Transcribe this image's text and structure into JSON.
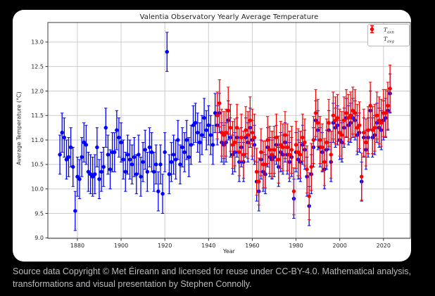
{
  "page": {
    "background": "#000000",
    "card_background": "#ffffff"
  },
  "caption": {
    "text": "Source data Copyright © Met Éireann and licensed for reuse under CC-BY-4.0. Mathematical analysis, transformations and visual presentation by Stephen Connolly.",
    "color": "#b7bbbf"
  },
  "chart_data": {
    "type": "scatter",
    "title": "Valentia Observatory Yearly Average Temperature",
    "xlabel": "Year",
    "ylabel": "Average Temperature (°C)",
    "xlim": [
      1866.5,
      2032.3
    ],
    "ylim": [
      8.99,
      13.4
    ],
    "xticks": [
      1880,
      1900,
      1920,
      1940,
      1960,
      1980,
      2000,
      2020
    ],
    "yticks": [
      9.0,
      9.5,
      10.0,
      10.5,
      11.0,
      11.5,
      12.0,
      12.5,
      13.0
    ],
    "ytick_labels": [
      "9.0",
      "9.5",
      "10.0",
      "10.5",
      "11.0",
      "11.5",
      "12.0",
      "12.5",
      "13.0"
    ],
    "grid": true,
    "grid_color": "#cccccc",
    "spine_color": "#4d4d4d",
    "legend_position": "upper right",
    "series": [
      {
        "name": "T_axn",
        "label_base": "T",
        "label_sub": "axn",
        "color": "#0000ff",
        "marker": "circle-errorbar",
        "yerr": 0.4,
        "points": [
          [
            1872,
            10.7
          ],
          [
            1873,
            11.15
          ],
          [
            1874,
            11.05
          ],
          [
            1875,
            10.6
          ],
          [
            1876,
            10.65
          ],
          [
            1877,
            10.85
          ],
          [
            1878,
            10.45
          ],
          [
            1879,
            9.55
          ],
          [
            1880,
            10.25
          ],
          [
            1881,
            10.2
          ],
          [
            1882,
            10.65
          ],
          [
            1883,
            10.95
          ],
          [
            1884,
            10.9
          ],
          [
            1885,
            10.35
          ],
          [
            1886,
            10.3
          ],
          [
            1887,
            10.25
          ],
          [
            1888,
            10.3
          ],
          [
            1889,
            10.85
          ],
          [
            1890,
            10.2
          ],
          [
            1891,
            10.35
          ],
          [
            1892,
            10.45
          ],
          [
            1893,
            11.25
          ],
          [
            1894,
            10.7
          ],
          [
            1895,
            10.4
          ],
          [
            1896,
            10.75
          ],
          [
            1897,
            10.75
          ],
          [
            1898,
            11.2
          ],
          [
            1899,
            11.05
          ],
          [
            1900,
            10.95
          ],
          [
            1901,
            10.6
          ],
          [
            1902,
            10.35
          ],
          [
            1903,
            10.7
          ],
          [
            1904,
            10.6
          ],
          [
            1905,
            10.5
          ],
          [
            1906,
            10.65
          ],
          [
            1907,
            10.3
          ],
          [
            1908,
            10.7
          ],
          [
            1909,
            10.25
          ],
          [
            1910,
            10.55
          ],
          [
            1911,
            10.8
          ],
          [
            1912,
            10.35
          ],
          [
            1913,
            10.85
          ],
          [
            1914,
            10.75
          ],
          [
            1915,
            10.35
          ],
          [
            1916,
            10.5
          ],
          [
            1917,
            9.95
          ],
          [
            1918,
            10.5
          ],
          [
            1919,
            9.9
          ],
          [
            1920,
            10.75
          ],
          [
            1921,
            12.8
          ],
          [
            1922,
            10.3
          ],
          [
            1923,
            10.55
          ],
          [
            1924,
            10.7
          ],
          [
            1925,
            10.6
          ],
          [
            1926,
            11.0
          ],
          [
            1927,
            10.5
          ],
          [
            1928,
            10.85
          ],
          [
            1929,
            10.75
          ],
          [
            1930,
            11.0
          ],
          [
            1931,
            10.65
          ],
          [
            1932,
            10.9
          ],
          [
            1933,
            11.3
          ],
          [
            1934,
            11.35
          ],
          [
            1935,
            11.15
          ],
          [
            1936,
            10.95
          ],
          [
            1937,
            11.1
          ],
          [
            1938,
            11.45
          ],
          [
            1939,
            11.2
          ],
          [
            1940,
            11.3
          ],
          [
            1941,
            11.1
          ],
          [
            1942,
            10.9
          ],
          [
            1943,
            11.55
          ],
          [
            1944,
            11.3
          ],
          [
            1945,
            11.55
          ],
          [
            1946,
            10.95
          ],
          [
            1947,
            10.9
          ],
          [
            1948,
            10.95
          ],
          [
            1949,
            11.4
          ],
          [
            1950,
            11.05
          ],
          [
            1951,
            10.7
          ],
          [
            1952,
            10.75
          ],
          [
            1953,
            11.05
          ],
          [
            1954,
            10.55
          ],
          [
            1955,
            10.85
          ],
          [
            1956,
            10.55
          ],
          [
            1957,
            11.05
          ],
          [
            1958,
            10.95
          ],
          [
            1959,
            11.25
          ],
          [
            1960,
            11.0
          ],
          [
            1961,
            10.9
          ],
          [
            1962,
            10.15
          ],
          [
            1963,
            9.95
          ],
          [
            1964,
            10.6
          ],
          [
            1965,
            10.35
          ],
          [
            1966,
            10.3
          ],
          [
            1967,
            10.85
          ],
          [
            1968,
            10.65
          ],
          [
            1969,
            10.6
          ],
          [
            1970,
            10.65
          ],
          [
            1971,
            10.9
          ],
          [
            1972,
            10.45
          ],
          [
            1973,
            10.75
          ],
          [
            1974,
            10.7
          ],
          [
            1975,
            10.95
          ],
          [
            1976,
            10.7
          ],
          [
            1977,
            10.55
          ],
          [
            1978,
            10.65
          ],
          [
            1979,
            9.8
          ],
          [
            1980,
            10.75
          ],
          [
            1981,
            10.6
          ],
          [
            1982,
            10.55
          ],
          [
            1983,
            10.9
          ],
          [
            1984,
            10.8
          ],
          [
            1985,
            10.25
          ],
          [
            1986,
            9.65
          ],
          [
            1987,
            10.3
          ],
          [
            1988,
            10.85
          ],
          [
            1989,
            11.4
          ],
          [
            1990,
            11.2
          ],
          [
            1991,
            10.85
          ],
          [
            1992,
            10.75
          ],
          [
            1993,
            10.4
          ],
          [
            1994,
            10.8
          ],
          [
            1995,
            11.2
          ],
          [
            1996,
            10.55
          ],
          [
            1997,
            11.35
          ],
          [
            1998,
            11.25
          ],
          [
            1999,
            11.3
          ],
          [
            2000,
            11.0
          ],
          [
            2001,
            10.95
          ],
          [
            2002,
            11.25
          ],
          [
            2003,
            11.45
          ],
          [
            2004,
            11.3
          ],
          [
            2005,
            11.35
          ],
          [
            2006,
            11.45
          ],
          [
            2007,
            11.4
          ],
          [
            2008,
            11.1
          ],
          [
            2009,
            11.15
          ],
          [
            2010,
            10.15
          ],
          [
            2011,
            11.05
          ],
          [
            2012,
            10.8
          ],
          [
            2013,
            11.05
          ],
          [
            2014,
            11.6
          ],
          [
            2015,
            11.05
          ],
          [
            2016,
            11.1
          ],
          [
            2017,
            11.35
          ],
          [
            2018,
            11.25
          ],
          [
            2019,
            11.2
          ],
          [
            2020,
            11.4
          ],
          [
            2021,
            11.45
          ],
          [
            2022,
            11.6
          ],
          [
            2023,
            11.95
          ]
        ]
      },
      {
        "name": "T_avg",
        "label_base": "T",
        "label_sub": "avg",
        "color": "#ff0000",
        "marker": "circle-errorbar",
        "yerr": 0.48,
        "points": [
          [
            1944,
            11.5
          ],
          [
            1945,
            11.75
          ],
          [
            1946,
            11.15
          ],
          [
            1947,
            11.1
          ],
          [
            1948,
            11.15
          ],
          [
            1949,
            11.6
          ],
          [
            1950,
            11.25
          ],
          [
            1951,
            10.9
          ],
          [
            1952,
            10.95
          ],
          [
            1953,
            11.25
          ],
          [
            1954,
            10.75
          ],
          [
            1955,
            11.05
          ],
          [
            1956,
            10.7
          ],
          [
            1957,
            11.2
          ],
          [
            1958,
            11.1
          ],
          [
            1959,
            11.4
          ],
          [
            1960,
            11.15
          ],
          [
            1961,
            11.05
          ],
          [
            1962,
            10.35
          ],
          [
            1963,
            10.15
          ],
          [
            1964,
            10.75
          ],
          [
            1965,
            10.5
          ],
          [
            1966,
            10.5
          ],
          [
            1967,
            11.0
          ],
          [
            1968,
            10.8
          ],
          [
            1969,
            10.7
          ],
          [
            1970,
            10.8
          ],
          [
            1971,
            11.05
          ],
          [
            1972,
            10.6
          ],
          [
            1973,
            10.9
          ],
          [
            1974,
            10.85
          ],
          [
            1975,
            11.1
          ],
          [
            1976,
            10.85
          ],
          [
            1977,
            10.7
          ],
          [
            1978,
            10.8
          ],
          [
            1979,
            9.95
          ],
          [
            1980,
            10.9
          ],
          [
            1981,
            10.75
          ],
          [
            1982,
            10.7
          ],
          [
            1983,
            11.05
          ],
          [
            1984,
            10.95
          ],
          [
            1985,
            10.4
          ],
          [
            1986,
            9.85
          ],
          [
            1987,
            10.45
          ],
          [
            1988,
            11.0
          ],
          [
            1989,
            11.55
          ],
          [
            1990,
            11.35
          ],
          [
            1991,
            11.0
          ],
          [
            1992,
            10.85
          ],
          [
            1993,
            10.55
          ],
          [
            1994,
            10.95
          ],
          [
            1995,
            11.35
          ],
          [
            1996,
            10.7
          ],
          [
            1997,
            11.5
          ],
          [
            1998,
            11.4
          ],
          [
            1999,
            11.45
          ],
          [
            2000,
            11.15
          ],
          [
            2001,
            11.1
          ],
          [
            2002,
            11.4
          ],
          [
            2003,
            11.55
          ],
          [
            2004,
            11.45
          ],
          [
            2005,
            11.5
          ],
          [
            2006,
            11.6
          ],
          [
            2007,
            11.55
          ],
          [
            2008,
            11.25
          ],
          [
            2009,
            11.3
          ],
          [
            2010,
            10.25
          ],
          [
            2011,
            11.15
          ],
          [
            2012,
            10.95
          ],
          [
            2013,
            11.2
          ],
          [
            2014,
            11.7
          ],
          [
            2015,
            11.2
          ],
          [
            2016,
            11.25
          ],
          [
            2017,
            11.5
          ],
          [
            2018,
            11.4
          ],
          [
            2019,
            11.35
          ],
          [
            2020,
            11.55
          ],
          [
            2021,
            11.55
          ],
          [
            2022,
            11.7
          ],
          [
            2023,
            12.05
          ]
        ]
      }
    ]
  }
}
